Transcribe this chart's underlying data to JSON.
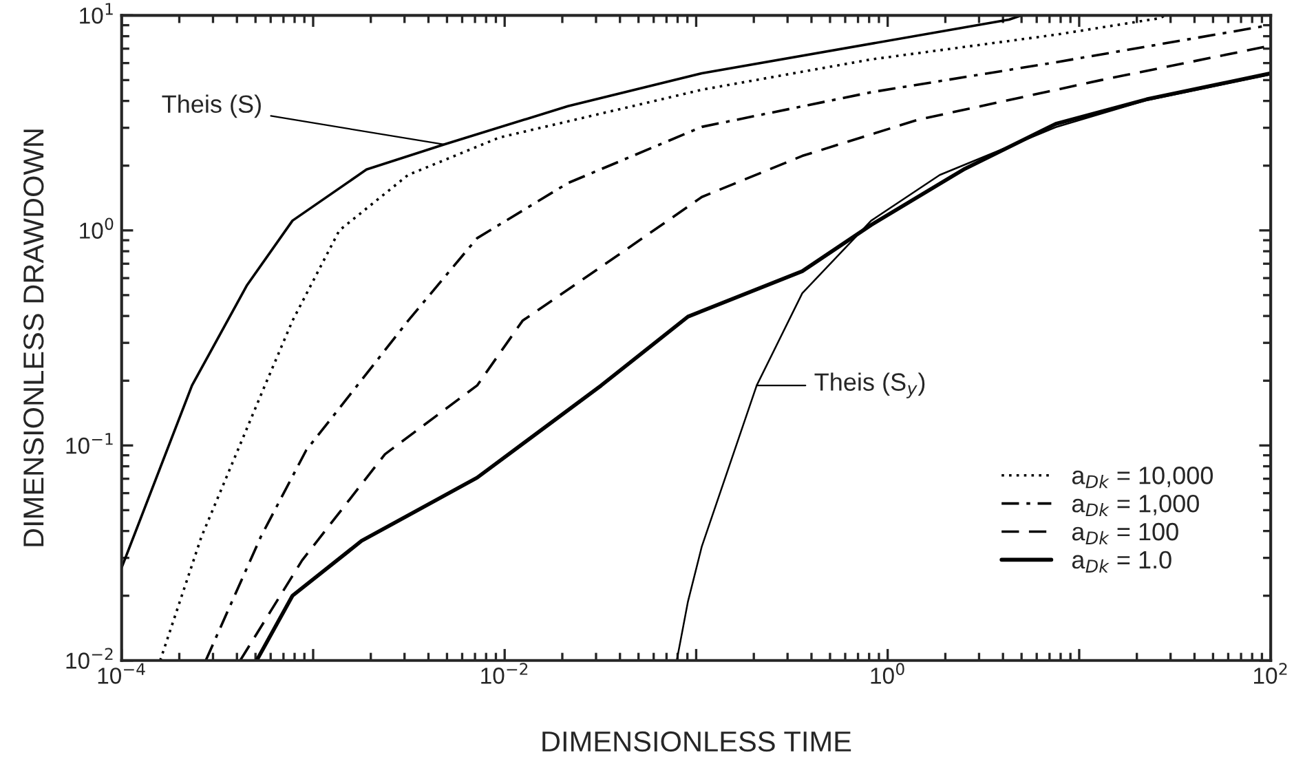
{
  "chart_data": {
    "type": "line",
    "xlabel": "DIMENSIONLESS TIME",
    "ylabel": "DIMENSIONLESS DRAWDOWN",
    "log": "xy",
    "xlim": [
      0.0001,
      100
    ],
    "ylim": [
      0.01,
      10
    ],
    "xticks": [
      {
        "value": 0.0001,
        "label": "10$^{−4}$"
      },
      {
        "value": 0.001,
        "label": null
      },
      {
        "value": 0.01,
        "label": "10$^{−2}$"
      },
      {
        "value": 0.1,
        "label": null
      },
      {
        "value": 1,
        "label": "10$^{0}$"
      },
      {
        "value": 10,
        "label": null
      },
      {
        "value": 100,
        "label": "10$^{2}$"
      }
    ],
    "yticks": [
      {
        "value": 0.01,
        "label": "10$^{−2}$"
      },
      {
        "value": 0.1,
        "label": "10$^{−1}$"
      },
      {
        "value": 1,
        "label": "10$^{0}$"
      },
      {
        "value": 10,
        "label": "10$^{1}$"
      }
    ],
    "grid": false,
    "legend": "bottom right",
    "series": [
      {
        "color": "#000000",
        "line_style": "solid",
        "x": [
          0.0001,
          0.000233,
          0.000452,
          0.00078,
          0.0019,
          0.00482,
          0.0214,
          0.107,
          4.3,
          5.0
        ],
        "values": [
          0.027,
          0.19,
          0.557,
          1.11,
          1.92,
          2.51,
          3.78,
          5.38,
          9.55,
          10
        ]
      },
      {
        "name": "a$_{Dk}$ = 10,000",
        "color": "#000000",
        "line_style": "dotted",
        "x": [
          0.000159,
          0.000261,
          0.00056,
          0.00078,
          0.00137,
          0.00313,
          0.00935,
          0.0377,
          0.107,
          0.82,
          7.55,
          26.3,
          28.2
        ],
        "values": [
          0.01,
          0.0376,
          0.19,
          0.38,
          1.0,
          1.81,
          2.7,
          3.62,
          4.51,
          6.24,
          8.13,
          9.7,
          10
        ]
      },
      {
        "name": "a$_{Dk}$ = 1,000",
        "color": "#000000",
        "line_style": "dashdot",
        "x": [
          0.000275,
          0.000533,
          0.00092,
          0.0017,
          0.00313,
          0.00718,
          0.0214,
          0.107,
          0.82,
          7.55,
          100
        ],
        "values": [
          0.01,
          0.0376,
          0.095,
          0.19,
          0.38,
          0.92,
          1.66,
          3.03,
          4.39,
          6.05,
          9.02
        ]
      },
      {
        "name": "a$_{Dk}$ = 100",
        "color": "#000000",
        "line_style": "dashed",
        "x": [
          0.000416,
          0.000875,
          0.00237,
          0.00718,
          0.0124,
          0.0377,
          0.107,
          0.358,
          1.44,
          13.0,
          100
        ],
        "values": [
          0.01,
          0.0292,
          0.091,
          0.19,
          0.38,
          0.75,
          1.43,
          2.22,
          3.27,
          5.0,
          7.23
        ]
      },
      {
        "name": "a$_{Dk}$ = 1.0",
        "color": "#000000",
        "line_style": "solid",
        "x": [
          0.000507,
          0.00078,
          0.00179,
          0.00718,
          0.0319,
          0.0906,
          0.358,
          0.82,
          2.49,
          7.55,
          22.5,
          100
        ],
        "values": [
          0.01,
          0.02,
          0.036,
          0.0708,
          0.19,
          0.397,
          0.646,
          1.06,
          1.92,
          3.13,
          4.07,
          5.38
        ]
      },
      {
        "color": "#000000",
        "line_style": "solid",
        "x": [
          0.0792,
          0.0906,
          0.107,
          0.207,
          0.358,
          0.82,
          1.87,
          7.55,
          22.5,
          100
        ],
        "values": [
          0.01,
          0.0188,
          0.0339,
          0.19,
          0.51,
          1.11,
          1.81,
          3.02,
          4.03,
          5.31
        ]
      }
    ],
    "annotations": [
      {
        "text": "Theis (S)",
        "x": 0.00482,
        "y": 2.51
      },
      {
        "text": "Theis (S$_{y}$)",
        "x": 0.207,
        "y": 0.19
      }
    ]
  }
}
